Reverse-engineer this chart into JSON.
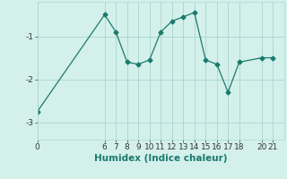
{
  "xlabel": "Humidex (Indice chaleur)",
  "x_data": [
    0,
    6,
    7,
    8,
    9,
    10,
    11,
    12,
    13,
    14,
    15,
    16,
    17,
    18,
    20,
    21
  ],
  "y_data": [
    -2.75,
    -0.5,
    -0.9,
    -1.6,
    -1.65,
    -1.55,
    -0.9,
    -0.65,
    -0.55,
    -0.45,
    -1.55,
    -1.65,
    -2.3,
    -1.6,
    -1.5,
    -1.5
  ],
  "line_color": "#1a7a6e",
  "bg_color": "#d4f0eb",
  "grid_color": "#aed8d3",
  "yticks": [
    -3,
    -2,
    -1
  ],
  "xticks": [
    0,
    6,
    7,
    8,
    9,
    10,
    11,
    12,
    13,
    14,
    15,
    16,
    17,
    18,
    20,
    21
  ],
  "xlim": [
    0,
    22
  ],
  "ylim": [
    -3.4,
    -0.2
  ],
  "label_fontsize": 7.5,
  "tick_fontsize": 6.5
}
